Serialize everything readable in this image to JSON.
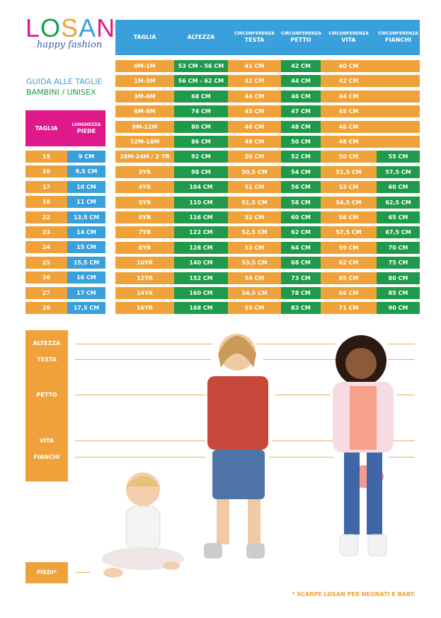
{
  "brand": {
    "letters": [
      {
        "ch": "L",
        "color": "#e0198a"
      },
      {
        "ch": "O",
        "color": "#1f9a4a"
      },
      {
        "ch": "S",
        "color": "#f0a23a"
      },
      {
        "ch": "A",
        "color": "#3aa0dc"
      },
      {
        "ch": "N",
        "color": "#e0198a"
      }
    ],
    "tagline": "happy fashion"
  },
  "guide": {
    "line1": "GUIDA ALLE TAGLIE",
    "line2": "BAMBINI / UNISEX"
  },
  "shoe_table": {
    "headers": {
      "size": "TAGLIA",
      "length_small": "LUNGHEZZA",
      "length": "PIEDE"
    },
    "rows": [
      [
        "15",
        "9 CM"
      ],
      [
        "16",
        "9,5 CM"
      ],
      [
        "17",
        "10 CM"
      ],
      [
        "18",
        "11 CM"
      ],
      [
        "22",
        "13,5 CM"
      ],
      [
        "23",
        "14 CM"
      ],
      [
        "24",
        "15 CM"
      ],
      [
        "25",
        "15,5 CM"
      ],
      [
        "26",
        "16 CM"
      ],
      [
        "27",
        "17 CM"
      ],
      [
        "28",
        "17,5 CM"
      ]
    ]
  },
  "size_table": {
    "headers": [
      {
        "small": "",
        "main": "TAGLIA"
      },
      {
        "small": "",
        "main": "ALTEZZA"
      },
      {
        "small": "CIRCONFERENZA",
        "main": "TESTA"
      },
      {
        "small": "CIRCONFERENZA",
        "main": "PETTO"
      },
      {
        "small": "CIRCONFERENZA",
        "main": "VITA"
      },
      {
        "small": "CIRCONFERENZA",
        "main": "FIANCHI"
      }
    ],
    "rows": [
      [
        "0M-1M",
        "53 CM - 56 CM",
        "41 CM",
        "42 CM",
        "40 CM",
        ""
      ],
      [
        "1M-3M",
        "56 CM - 62 CM",
        "42 CM",
        "44 CM",
        "42 CM",
        ""
      ],
      [
        "3M-6M",
        "68 CM",
        "44 CM",
        "46 CM",
        "44 CM",
        ""
      ],
      [
        "6M-9M",
        "74 CM",
        "45 CM",
        "47 CM",
        "45 CM",
        ""
      ],
      [
        "9M-12M",
        "80 CM",
        "46 CM",
        "48 CM",
        "46 CM",
        ""
      ],
      [
        "12M-18M",
        "86 CM",
        "48 CM",
        "50 CM",
        "48 CM",
        ""
      ],
      [
        "18M-24M / 2 YR",
        "92 CM",
        "50 CM",
        "52 CM",
        "50 CM",
        "55 CM"
      ],
      [
        "3YR",
        "98 CM",
        "50,5 CM",
        "54 CM",
        "51,5 CM",
        "57,5 CM"
      ],
      [
        "4YR",
        "104 CM",
        "51 CM",
        "56 CM",
        "53 CM",
        "60 CM"
      ],
      [
        "5YR",
        "110 CM",
        "51,5 CM",
        "58 CM",
        "54,5 CM",
        "62,5 CM"
      ],
      [
        "6YR",
        "116 CM",
        "52 CM",
        "60 CM",
        "56 CM",
        "65 CM"
      ],
      [
        "7YR",
        "122 CM",
        "52,5 CM",
        "62 CM",
        "57,5 CM",
        "67,5 CM"
      ],
      [
        "8YR",
        "128 CM",
        "53 CM",
        "64 CM",
        "59 CM",
        "70 CM"
      ],
      [
        "10YR",
        "140 CM",
        "53,5 CM",
        "68 CM",
        "62 CM",
        "75 CM"
      ],
      [
        "12YR",
        "152 CM",
        "54 CM",
        "73 CM",
        "65 CM",
        "80 CM"
      ],
      [
        "14YR",
        "160 CM",
        "54,5 CM",
        "78 CM",
        "68 CM",
        "85 CM"
      ],
      [
        "16YR",
        "168 CM",
        "55 CM",
        "83 CM",
        "71 CM",
        "90 CM"
      ]
    ]
  },
  "measures": {
    "altezza": "ALTEZZA",
    "testa": "TESTA",
    "petto": "PETTO",
    "vita": "VITA",
    "fianchi": "FIANCHI",
    "piedi": "PIEDI*"
  },
  "footnote": "* SCARPE LOSAN PER NEONATI E BABY.",
  "colors": {
    "orange": "#f0a23a",
    "green": "#1f9a4a",
    "blue": "#3aa0dc",
    "magenta": "#e0198a"
  }
}
